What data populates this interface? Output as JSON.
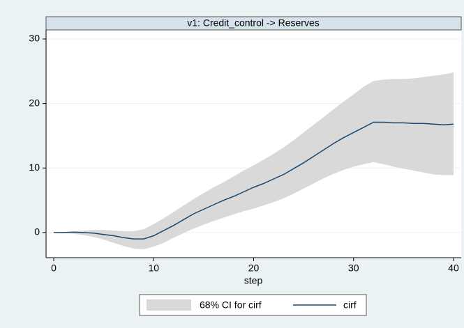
{
  "chart_data": {
    "type": "line",
    "title": "v1: Credit_control -> Reserves",
    "x_label": "step",
    "x": [
      0,
      1,
      2,
      3,
      4,
      5,
      6,
      7,
      8,
      9,
      10,
      11,
      12,
      13,
      14,
      15,
      16,
      17,
      18,
      19,
      20,
      21,
      22,
      23,
      24,
      25,
      26,
      27,
      28,
      29,
      30,
      31,
      32,
      33,
      34,
      35,
      36,
      37,
      38,
      39,
      40
    ],
    "series": [
      {
        "name": "68% CI for cirf",
        "color": "#d9d9d9",
        "upper": [
          0,
          0.05,
          0.2,
          0.3,
          0.4,
          0.4,
          0.3,
          0.2,
          0.2,
          0.5,
          1.3,
          2.2,
          3.2,
          4.2,
          5.2,
          6.1,
          7.0,
          7.8,
          8.7,
          9.6,
          10.4,
          11.3,
          12.2,
          13.2,
          14.3,
          15.5,
          16.7,
          17.9,
          19.1,
          20.3,
          21.4,
          22.6,
          23.5,
          23.7,
          23.8,
          23.8,
          23.9,
          24.1,
          24.3,
          24.5,
          24.8
        ],
        "lower": [
          0,
          -0.05,
          -0.2,
          -0.4,
          -0.7,
          -1.1,
          -1.6,
          -2.1,
          -2.5,
          -2.6,
          -2.2,
          -1.6,
          -0.8,
          -0.1,
          0.6,
          1.2,
          1.8,
          2.3,
          2.8,
          3.3,
          3.7,
          4.2,
          4.7,
          5.3,
          6.0,
          6.8,
          7.6,
          8.4,
          9.1,
          9.7,
          10.2,
          10.6,
          10.9,
          10.6,
          10.2,
          9.9,
          9.6,
          9.3,
          9.0,
          8.9,
          8.9
        ]
      },
      {
        "name": "cirf",
        "color": "#1a476f",
        "values": [
          0,
          0,
          0.05,
          0,
          -0.1,
          -0.3,
          -0.5,
          -0.8,
          -1.0,
          -1.0,
          -0.5,
          0.3,
          1.1,
          2.0,
          2.9,
          3.6,
          4.3,
          5.0,
          5.6,
          6.3,
          7.0,
          7.6,
          8.3,
          9.0,
          9.9,
          10.8,
          11.8,
          12.8,
          13.8,
          14.7,
          15.5,
          16.3,
          17.1,
          17.1,
          17.0,
          17.0,
          16.9,
          16.9,
          16.8,
          16.7,
          16.8
        ]
      }
    ],
    "xlim": [
      -0.77,
      40.77
    ],
    "ylim": [
      -3.9,
      31.4
    ],
    "xticks": [
      0,
      10,
      20,
      30,
      40
    ],
    "yticks": [
      0,
      10,
      20,
      30
    ],
    "grid": true
  }
}
